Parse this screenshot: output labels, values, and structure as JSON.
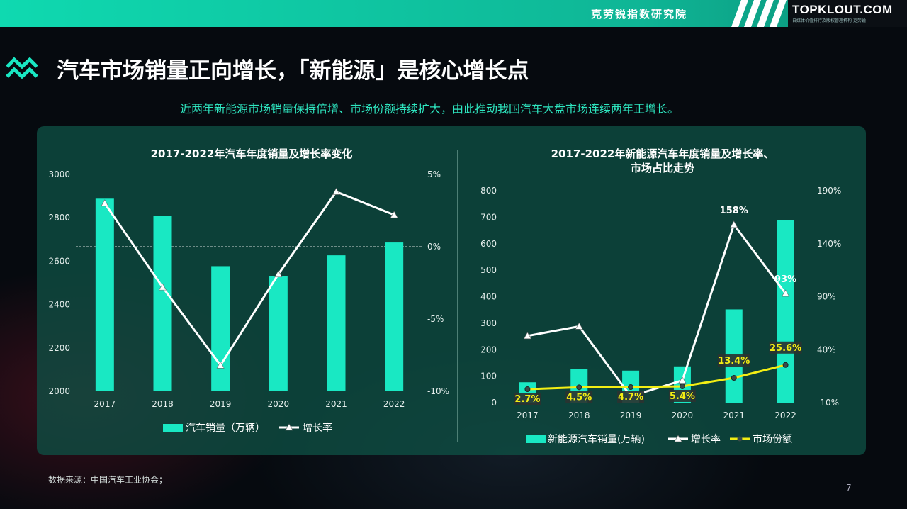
{
  "header": {
    "org_name": "克劳锐指数研究院",
    "logo_text": "TOPKLOUT.COM",
    "logo_subtext": "自媒体价值排行及版权管理机构 克劳锐"
  },
  "page": {
    "title": "汽车市场销量正向增长，「新能源」是核心增长点",
    "subtitle": "近两年新能源市场销量保持倍增、市场份额持续扩大，由此推动我国汽车大盘市场连续两年正增长。",
    "footnote": "数据来源：中国汽车工业协会；",
    "page_number": "7"
  },
  "colors": {
    "bar": "#19e8c3",
    "line": "#ffffff",
    "share_line": "#f3ee14"
  },
  "chart_data": [
    {
      "type": "bar",
      "title": "2017-2022年汽车年度销量及增长率变化",
      "categories": [
        "2017",
        "2018",
        "2019",
        "2020",
        "2021",
        "2022"
      ],
      "series": [
        {
          "name": "汽车销量（万辆）",
          "type": "bar",
          "axis": "left",
          "values": [
            2888,
            2808,
            2577,
            2531,
            2627,
            2686
          ]
        },
        {
          "name": "增长率",
          "type": "line",
          "axis": "right",
          "values": [
            3.0,
            -2.8,
            -8.2,
            -1.9,
            3.8,
            2.2
          ]
        }
      ],
      "y_left": {
        "min": 2000,
        "max": 3000,
        "ticks": [
          "2000",
          "2200",
          "2400",
          "2600",
          "2800",
          "3000"
        ]
      },
      "y_right": {
        "min": -10,
        "max": 5,
        "ticks": [
          "-10%",
          "-5%",
          "0%",
          "5%"
        ]
      },
      "zero_line": true,
      "legend": "bottom"
    },
    {
      "type": "bar",
      "title_lines": [
        "2017-2022年新能源汽车年度销量及增长率、",
        "市场占比走势"
      ],
      "categories": [
        "2017",
        "2018",
        "2019",
        "2020",
        "2021",
        "2022"
      ],
      "series": [
        {
          "name": "新能源汽车销量(万辆)",
          "type": "bar",
          "axis": "left",
          "values": [
            77,
            126,
            121,
            137,
            352,
            689
          ]
        },
        {
          "name": "增长率",
          "type": "line",
          "axis": "right",
          "values": [
            53,
            62,
            -4,
            11,
            158,
            93
          ],
          "labels": [
            "",
            "",
            "",
            "",
            "158%",
            "93%"
          ]
        },
        {
          "name": "市场份额",
          "type": "line",
          "axis": "right",
          "values": [
            2.7,
            4.5,
            4.7,
            5.4,
            13.4,
            25.6
          ],
          "labels": [
            "2.7%",
            "4.5%",
            "4.7%",
            "5.4%",
            "13.4%",
            "25.6%"
          ]
        }
      ],
      "y_left": {
        "min": 0,
        "max": 800,
        "ticks": [
          "0",
          "100",
          "200",
          "300",
          "400",
          "500",
          "600",
          "700",
          "800"
        ]
      },
      "y_right": {
        "min": -10,
        "max": 190,
        "ticks": [
          "-10%",
          "40%",
          "90%",
          "140%",
          "190%"
        ]
      },
      "legend": "bottom"
    }
  ]
}
